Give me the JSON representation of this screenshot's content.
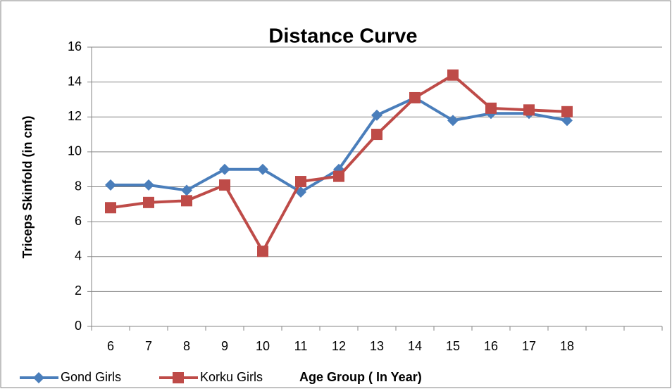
{
  "chart_data": {
    "type": "line",
    "title": "Distance Curve",
    "x_label": "Age Group ( In Year)",
    "y_label": "Triceps Skinfold (in cm)",
    "categories": [
      "6",
      "7",
      "8",
      "9",
      "10",
      "11",
      "12",
      "13",
      "14",
      "15",
      "16",
      "17",
      "18",
      null,
      null
    ],
    "series": [
      {
        "name": "Gond Girls",
        "color": "#4a7ebb",
        "marker": "diamond",
        "values": [
          8.1,
          8.1,
          7.8,
          9.0,
          9.0,
          7.7,
          9.0,
          12.1,
          13.1,
          11.8,
          12.2,
          12.2,
          11.8,
          null,
          null
        ]
      },
      {
        "name": "Korku Girls",
        "color": "#be4b48",
        "marker": "square",
        "values": [
          6.8,
          7.1,
          7.2,
          8.1,
          4.3,
          8.3,
          8.6,
          11.0,
          13.1,
          14.4,
          12.5,
          12.4,
          12.3,
          null,
          null
        ]
      }
    ],
    "ylim": [
      0,
      16
    ],
    "yticks": [
      0,
      2,
      4,
      6,
      8,
      10,
      12,
      14,
      16
    ],
    "grid": true,
    "legend": "bottom-left"
  }
}
